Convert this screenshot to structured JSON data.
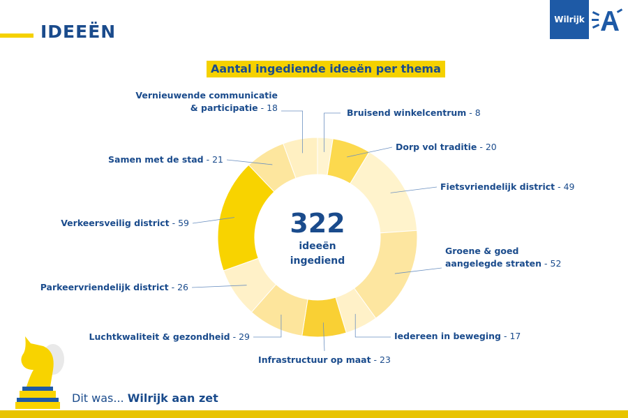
{
  "header": {
    "title": "IDEEËN"
  },
  "badge": {
    "label": "Wilrijk"
  },
  "chart_data": {
    "type": "pie",
    "title": "Aantal ingediende ideeën per thema",
    "center": {
      "value": "322",
      "line1": "ideeën",
      "line2": "ingediend"
    },
    "slices": [
      {
        "name": "Bruisend winkelcentrum",
        "value": 8,
        "color": "#fff4d0"
      },
      {
        "name": "Dorp vol traditie",
        "value": 20,
        "color": "#fcd94e"
      },
      {
        "name": "Fietsvriendelijk district",
        "value": 49,
        "color": "#fff3cc"
      },
      {
        "name": "Groene & goed aangelegde straten",
        "value": 52,
        "color": "#fde6a0"
      },
      {
        "name": "Iedereen in beweging",
        "value": 17,
        "color": "#fff1c8"
      },
      {
        "name": "Infrastructuur op maat",
        "value": 23,
        "color": "#f9d034"
      },
      {
        "name": "Luchtkwaliteit & gezondheid",
        "value": 29,
        "color": "#fde59c"
      },
      {
        "name": "Parkeervriendelijk district",
        "value": 26,
        "color": "#fff1c8"
      },
      {
        "name": "Verkeersveilig district",
        "value": 59,
        "color": "#f8d300"
      },
      {
        "name": "Samen met de stad",
        "value": 21,
        "color": "#fde69e"
      },
      {
        "name": "Vernieuwende communicatie & participatie",
        "value": 18,
        "color": "#fff0c2"
      }
    ],
    "labels": [
      {
        "lines": [
          "Bruisend winkelcentrum"
        ],
        "value": "8"
      },
      {
        "lines": [
          "Dorp vol traditie"
        ],
        "value": "20"
      },
      {
        "lines": [
          "Fietsvriendelijk district"
        ],
        "value": "49"
      },
      {
        "lines": [
          "Groene & goed",
          "aangelegde straten"
        ],
        "value": "52"
      },
      {
        "lines": [
          "Iedereen in beweging"
        ],
        "value": "17"
      },
      {
        "lines": [
          "Infrastructuur op maat"
        ],
        "value": "23"
      },
      {
        "lines": [
          "Luchtkwaliteit & gezondheid"
        ],
        "value": "29"
      },
      {
        "lines": [
          "Parkeervriendelijk district"
        ],
        "value": "26"
      },
      {
        "lines": [
          "Verkeersveilig district"
        ],
        "value": "59"
      },
      {
        "lines": [
          "Samen met de stad"
        ],
        "value": "21"
      },
      {
        "lines": [
          "Vernieuwende communicatie",
          "& participatie"
        ],
        "value": "18"
      }
    ]
  },
  "footer": {
    "prefix": "Dit was... ",
    "emphasis": "Wilrijk aan zet"
  },
  "icons": {
    "logo": "antwerp-a-logo-icon",
    "mascot": "chess-knight-icon"
  },
  "colors": {
    "brand_blue": "#1a4b8c",
    "brand_yellow": "#f5d100"
  }
}
